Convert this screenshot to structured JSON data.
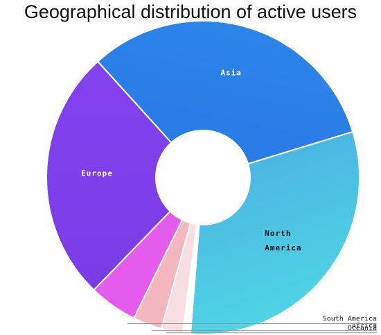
{
  "chart_data": {
    "type": "pie",
    "title": "Geographical distribution of active users",
    "donut": true,
    "slices": [
      {
        "label": "North America",
        "value": 31,
        "color": "#48b6e0",
        "color2": "#4fd0e6",
        "text_color": "#111111"
      },
      {
        "label": "Oceania",
        "value": 0.8,
        "color": "#ffffff",
        "text_color": "#222222"
      },
      {
        "label": "Africa",
        "value": 2.2,
        "color": "#f8dde3",
        "text_color": "#222222"
      },
      {
        "label": "South America",
        "value": 3,
        "color": "#f4b6bf",
        "text_color": "#222222"
      },
      {
        "label": "",
        "value": 5,
        "color": "#e55cec",
        "text_color": "#ffffff"
      },
      {
        "label": "Europe",
        "value": 26,
        "color": "#8143ec",
        "color2": "#7a3be8",
        "text_color": "#ffffff"
      },
      {
        "label": "Asia",
        "value": 32,
        "color": "#2a7fe6",
        "color2": "#2b86e8",
        "text_color": "#ffffff"
      }
    ]
  }
}
